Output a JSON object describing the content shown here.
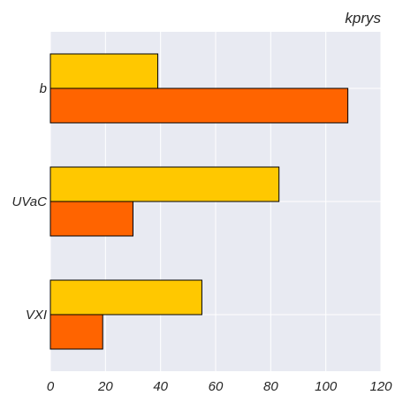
{
  "chart_data": {
    "type": "bar",
    "orientation": "horizontal",
    "categories": [
      "b",
      "UVaC",
      "VXI"
    ],
    "series": [
      {
        "color": "#ffc800",
        "values": [
          39,
          83,
          55
        ]
      },
      {
        "color": "#ff6400",
        "values": [
          108,
          30,
          19
        ]
      }
    ],
    "xlim": [
      0,
      120
    ],
    "x_ticks": [
      "0",
      "20",
      "40",
      "60",
      "80",
      "100",
      "120"
    ],
    "x_tick_values": [
      0,
      20,
      40,
      60,
      80,
      100,
      120
    ],
    "title": "kprys",
    "xlabel": "",
    "ylabel": "",
    "grid": true,
    "background_color": "#e8eaf2",
    "grid_color": "#ffffff",
    "bar_edge_color": "#000000"
  }
}
